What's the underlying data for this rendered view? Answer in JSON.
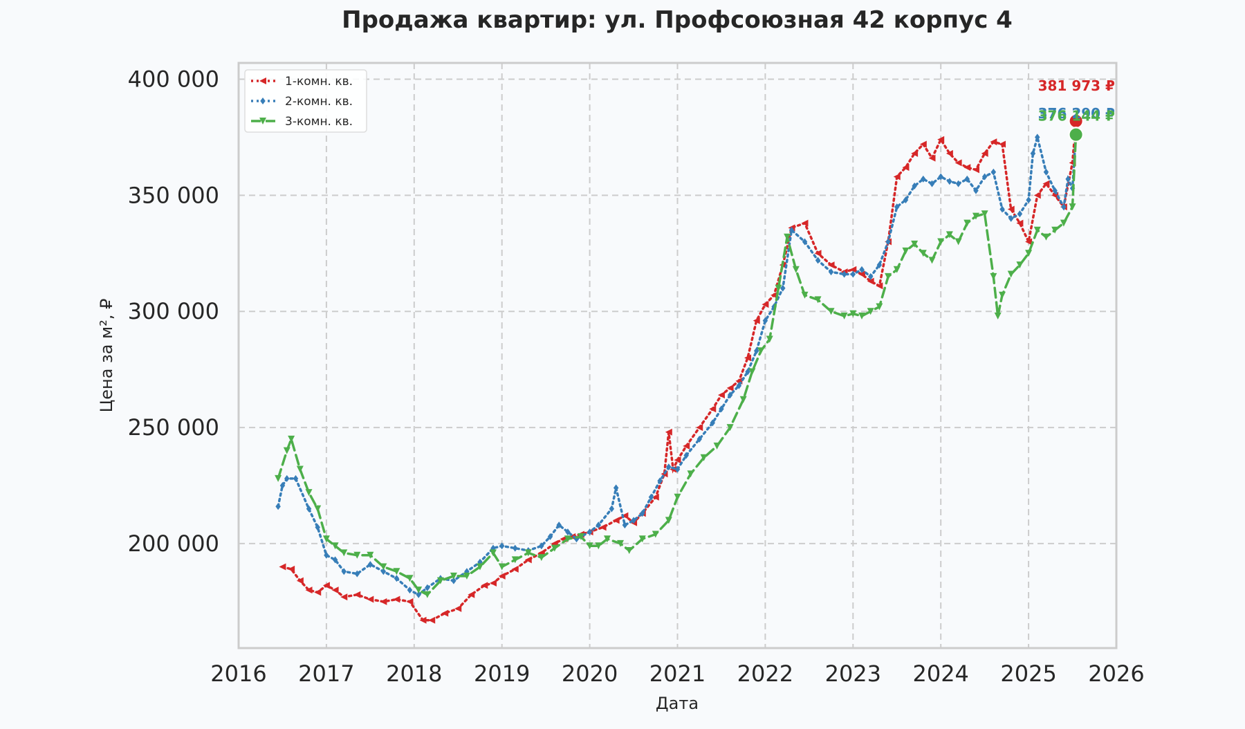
{
  "chart_data": {
    "type": "line",
    "title": "Продажа квартир: ул. Профсоюзная 42 корпус 4",
    "xlabel": "Дата",
    "ylabel": "Цена за м², ₽",
    "xlim": [
      2016,
      2026
    ],
    "ylim": [
      155000,
      407000
    ],
    "x_ticks": [
      2016,
      2017,
      2018,
      2019,
      2020,
      2021,
      2022,
      2023,
      2024,
      2025,
      2026
    ],
    "x_tick_labels": [
      "2016",
      "2017",
      "2018",
      "2019",
      "2020",
      "2021",
      "2022",
      "2023",
      "2024",
      "2025",
      "2026"
    ],
    "y_ticks": [
      200000,
      250000,
      300000,
      350000,
      400000
    ],
    "y_tick_labels": [
      "200 000",
      "250 000",
      "300 000",
      "350 000",
      "400 000"
    ],
    "grid": true,
    "legend_position": "top-left",
    "series": [
      {
        "name": "1-комн. кв.",
        "color": "#d62728",
        "line_style": "dotted",
        "marker": "triangle-left",
        "x": [
          2016.5,
          2016.6,
          2016.7,
          2016.8,
          2016.9,
          2017.0,
          2017.1,
          2017.2,
          2017.35,
          2017.5,
          2017.65,
          2017.8,
          2017.95,
          2018.1,
          2018.2,
          2018.35,
          2018.5,
          2018.65,
          2018.8,
          2018.9,
          2019.0,
          2019.15,
          2019.3,
          2019.45,
          2019.6,
          2019.7,
          2019.8,
          2019.9,
          2020.0,
          2020.15,
          2020.3,
          2020.4,
          2020.5,
          2020.6,
          2020.75,
          2020.85,
          2020.9,
          2020.95,
          2021.0,
          2021.1,
          2021.25,
          2021.4,
          2021.5,
          2021.6,
          2021.7,
          2021.8,
          2021.9,
          2022.0,
          2022.1,
          2022.2,
          2022.3,
          2022.45,
          2022.6,
          2022.75,
          2022.9,
          2023.0,
          2023.1,
          2023.2,
          2023.3,
          2023.4,
          2023.5,
          2023.6,
          2023.7,
          2023.8,
          2023.9,
          2024.0,
          2024.1,
          2024.2,
          2024.3,
          2024.4,
          2024.5,
          2024.6,
          2024.7,
          2024.8,
          2024.9,
          2025.0,
          2025.1,
          2025.2,
          2025.3,
          2025.4,
          2025.5,
          2025.54
        ],
        "y": [
          190000,
          189000,
          184000,
          180000,
          179000,
          182000,
          180000,
          177000,
          178000,
          176000,
          175000,
          176000,
          175000,
          167000,
          167000,
          170000,
          172000,
          178000,
          182000,
          183000,
          186000,
          189000,
          193000,
          196000,
          200000,
          202000,
          203000,
          204000,
          205000,
          207000,
          210000,
          212000,
          209000,
          213000,
          220000,
          230000,
          248000,
          232000,
          236000,
          242000,
          250000,
          258000,
          264000,
          267000,
          270000,
          280000,
          296000,
          303000,
          307000,
          320000,
          336000,
          338000,
          325000,
          320000,
          317000,
          318000,
          316000,
          313000,
          311000,
          330000,
          358000,
          362000,
          368000,
          372000,
          366000,
          374000,
          368000,
          364000,
          362000,
          361000,
          368000,
          373000,
          372000,
          344000,
          338000,
          330000,
          350000,
          355000,
          350000,
          345000,
          364000,
          381973
        ]
      },
      {
        "name": "2-комн. кв.",
        "color": "#377eb8",
        "line_style": "dotted",
        "marker": "diamond",
        "x": [
          2016.45,
          2016.5,
          2016.55,
          2016.65,
          2016.8,
          2016.9,
          2017.0,
          2017.1,
          2017.2,
          2017.35,
          2017.5,
          2017.65,
          2017.8,
          2017.95,
          2018.05,
          2018.15,
          2018.3,
          2018.45,
          2018.6,
          2018.75,
          2018.9,
          2019.0,
          2019.15,
          2019.3,
          2019.45,
          2019.55,
          2019.65,
          2019.75,
          2019.85,
          2020.0,
          2020.1,
          2020.25,
          2020.3,
          2020.4,
          2020.5,
          2020.6,
          2020.7,
          2020.8,
          2020.9,
          2021.0,
          2021.1,
          2021.25,
          2021.4,
          2021.5,
          2021.6,
          2021.7,
          2021.8,
          2021.9,
          2022.0,
          2022.1,
          2022.2,
          2022.3,
          2022.45,
          2022.6,
          2022.75,
          2022.9,
          2023.0,
          2023.1,
          2023.2,
          2023.3,
          2023.4,
          2023.5,
          2023.6,
          2023.7,
          2023.8,
          2023.9,
          2024.0,
          2024.1,
          2024.2,
          2024.3,
          2024.4,
          2024.5,
          2024.6,
          2024.7,
          2024.8,
          2024.9,
          2025.0,
          2025.05,
          2025.1,
          2025.2,
          2025.3,
          2025.4,
          2025.45,
          2025.5,
          2025.54
        ],
        "y": [
          216000,
          225000,
          228000,
          228000,
          215000,
          207000,
          195000,
          193000,
          188000,
          187000,
          191000,
          188000,
          185000,
          180000,
          178000,
          181000,
          185000,
          184000,
          188000,
          192000,
          198000,
          199000,
          198000,
          197000,
          199000,
          203000,
          208000,
          205000,
          202000,
          205000,
          208000,
          215000,
          224000,
          208000,
          210000,
          213000,
          220000,
          227000,
          233000,
          232000,
          238000,
          245000,
          252000,
          258000,
          264000,
          268000,
          274000,
          283000,
          296000,
          302000,
          310000,
          335000,
          330000,
          322000,
          317000,
          316000,
          316000,
          318000,
          315000,
          320000,
          330000,
          345000,
          348000,
          354000,
          357000,
          355000,
          358000,
          356000,
          355000,
          357000,
          352000,
          358000,
          360000,
          344000,
          340000,
          342000,
          348000,
          368000,
          375000,
          360000,
          352000,
          345000,
          357000,
          353000,
          376290
        ]
      },
      {
        "name": "3-комн. кв.",
        "color": "#4daf4a",
        "line_style": "dashed",
        "marker": "triangle-down",
        "x": [
          2016.45,
          2016.55,
          2016.6,
          2016.7,
          2016.8,
          2016.9,
          2017.0,
          2017.1,
          2017.2,
          2017.35,
          2017.5,
          2017.65,
          2017.8,
          2017.95,
          2018.05,
          2018.15,
          2018.3,
          2018.45,
          2018.6,
          2018.75,
          2018.9,
          2019.0,
          2019.15,
          2019.3,
          2019.45,
          2019.6,
          2019.75,
          2019.9,
          2020.0,
          2020.1,
          2020.2,
          2020.35,
          2020.45,
          2020.6,
          2020.75,
          2020.9,
          2021.0,
          2021.15,
          2021.3,
          2021.45,
          2021.6,
          2021.75,
          2021.85,
          2021.95,
          2022.05,
          2022.15,
          2022.25,
          2022.35,
          2022.45,
          2022.6,
          2022.75,
          2022.9,
          2023.0,
          2023.1,
          2023.2,
          2023.3,
          2023.4,
          2023.5,
          2023.6,
          2023.7,
          2023.8,
          2023.9,
          2024.0,
          2024.1,
          2024.2,
          2024.3,
          2024.4,
          2024.5,
          2024.6,
          2024.65,
          2024.7,
          2024.8,
          2024.9,
          2025.0,
          2025.1,
          2025.2,
          2025.3,
          2025.4,
          2025.5,
          2025.54
        ],
        "y": [
          228000,
          240000,
          245000,
          232000,
          222000,
          215000,
          202000,
          199000,
          196000,
          195000,
          195000,
          190000,
          188000,
          185000,
          180000,
          178000,
          184000,
          186000,
          186000,
          190000,
          196000,
          190000,
          193000,
          196000,
          194000,
          198000,
          202000,
          203000,
          199000,
          199000,
          202000,
          200000,
          197000,
          202000,
          204000,
          210000,
          220000,
          230000,
          237000,
          242000,
          250000,
          262000,
          274000,
          283000,
          288000,
          310000,
          332000,
          318000,
          307000,
          305000,
          300000,
          298000,
          299000,
          298000,
          300000,
          302000,
          315000,
          318000,
          326000,
          329000,
          325000,
          322000,
          330000,
          333000,
          330000,
          338000,
          341000,
          342000,
          315000,
          298000,
          307000,
          316000,
          320000,
          325000,
          335000,
          332000,
          335000,
          338000,
          345000,
          376144
        ]
      }
    ],
    "end_labels": [
      "381 973 ₽",
      "376 290 ₽",
      "376 144 ₽"
    ]
  }
}
